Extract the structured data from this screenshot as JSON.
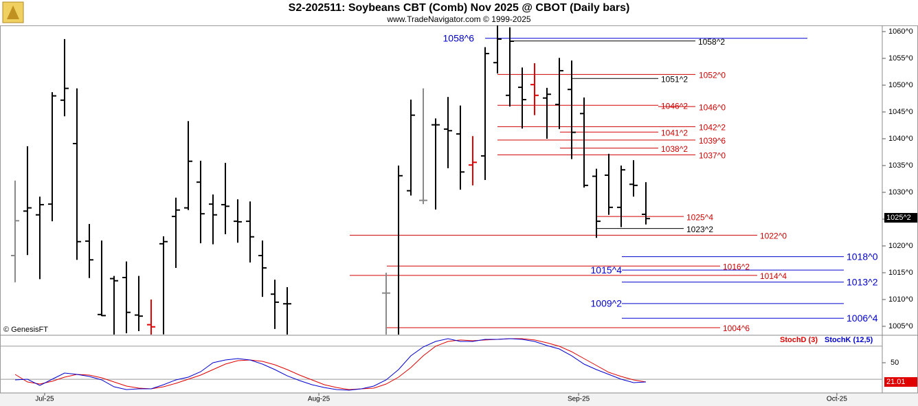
{
  "title": "S2-202511:  Soybeans CBT (Comb) Nov 2025 @ CBOT  (Daily bars)",
  "subtitle": "www.TradeNavigator.com © 1999-2025",
  "watermark": "© GenesisFT",
  "chart_data": [
    {
      "type": "ohlc",
      "xlim": [
        -1.22,
        70.11
      ],
      "ylim": [
        1003.46,
        1061.15
      ],
      "xticks": [
        {
          "value": 2.39,
          "label": "Jul-25"
        },
        {
          "value": 24.56,
          "label": "Aug-25"
        },
        {
          "value": 45.56,
          "label": "Sep-25"
        },
        {
          "value": 66.44,
          "label": "Oct-25"
        }
      ],
      "yticks": [
        {
          "value": 1060,
          "label": "1060^0"
        },
        {
          "value": 1055,
          "label": "1055^0"
        },
        {
          "value": 1050,
          "label": "1050^0"
        },
        {
          "value": 1045,
          "label": "1045^0"
        },
        {
          "value": 1040,
          "label": "1040^0"
        },
        {
          "value": 1035,
          "label": "1035^0"
        },
        {
          "value": 1030,
          "label": "1030^0"
        },
        {
          "value": 1025,
          "label": "1025^0"
        },
        {
          "value": 1020,
          "label": "1020^0"
        },
        {
          "value": 1015,
          "label": "1015^0"
        },
        {
          "value": 1010,
          "label": "1010^0"
        },
        {
          "value": 1005,
          "label": "1005^0"
        }
      ],
      "open": [
        1018.2,
        1026.5,
        1025.8,
        1027.8,
        1047.2,
        1039.1,
        1020.9,
        1007.2,
        1013.9,
        1014.1,
        1007.1,
        1005.3,
        1020.4,
        1025.5,
        1027.1,
        1031.9,
        1027.8,
        1027.7,
        1024.6,
        1024.6,
        1018.2,
        1011.0,
        1009.2,
        null,
        null,
        null,
        null,
        null,
        null,
        null,
        1011.2,
        1003.0,
        1030.3,
        1028.5,
        1042.6,
        1041.8,
        1040.9,
        1035.1,
        1036.8,
        1054.2,
        1048.1,
        1049.6,
        1050.1,
        1047.6,
        1046.4,
        1049.2,
        1044.7,
        1033.0,
        1033.2,
        1027.2,
        1031.5,
        1025.9
      ],
      "high": [
        1032.2,
        1038.6,
        1029.2,
        1048.7,
        1058.6,
        1049.4,
        1024.1,
        1021.0,
        1014.4,
        1017.1,
        1014.4,
        1010.0,
        1021.8,
        1029.0,
        1043.3,
        1035.9,
        1029.6,
        1035.5,
        1028.7,
        1028.3,
        1021.0,
        1013.7,
        1012.3,
        null,
        null,
        null,
        null,
        null,
        null,
        null,
        1015.0,
        1035.0,
        1047.3,
        1049.4,
        1043.8,
        1047.8,
        1046.2,
        1040.5,
        1057.1,
        1061.2,
        1060.8,
        1053.3,
        1054.1,
        1049.5,
        1055.1,
        1054.6,
        1047.7,
        1034.4,
        1037.2,
        1035.0,
        1036.0,
        1031.9
      ],
      "low": [
        1013.2,
        1018.3,
        1013.8,
        1024.6,
        1044.2,
        1017.4,
        1014.0,
        1006.9,
        1002.0,
        1003.7,
        1004.1,
        1003.0,
        1003.5,
        1015.9,
        1026.7,
        1020.5,
        1020.3,
        1022.2,
        1020.6,
        1016.9,
        1010.5,
        1004.5,
        1003.0,
        null,
        null,
        null,
        null,
        null,
        null,
        null,
        1003.0,
        1003.0,
        1029.4,
        1027.8,
        1026.8,
        1034.5,
        1030.5,
        1031.3,
        1032.3,
        1052.2,
        1046.0,
        1041.9,
        1044.4,
        1040.0,
        1041.8,
        1036.2,
        1030.9,
        1021.5,
        1025.8,
        1023.5,
        1029.2,
        1024.0
      ],
      "close": [
        1024.7,
        1027.1,
        1027.7,
        1048.0,
        1049.4,
        1020.8,
        1017.4,
        1007.0,
        1013.5,
        1007.6,
        1006.9,
        1004.9,
        1020.8,
        1026.7,
        1035.8,
        1026.0,
        1025.8,
        1027.4,
        1024.5,
        1021.7,
        1015.9,
        1009.5,
        1009.2,
        null,
        null,
        null,
        null,
        null,
        null,
        null,
        1011.2,
        1033.1,
        1044.4,
        1028.5,
        1042.6,
        1041.5,
        1033.8,
        1035.6,
        1055.9,
        1058.6,
        1058.2,
        1047.3,
        1048.1,
        1048.3,
        1052.7,
        1041.2,
        1031.3,
        1024.6,
        1027.2,
        1034.2,
        1031.3,
        1025.1
      ],
      "colors": [
        "#888888",
        "#000000",
        "#000000",
        "#000000",
        "#000000",
        "#000000",
        "#000000",
        "#000000",
        "#000000",
        "#000000",
        "#000000",
        "#e00000",
        "#000000",
        "#000000",
        "#000000",
        "#000000",
        "#000000",
        "#000000",
        "#000000",
        "#000000",
        "#000000",
        "#000000",
        "#000000",
        "#000000",
        "#000000",
        "#000000",
        "#000000",
        "#000000",
        "#000000",
        "#000000",
        "#888888",
        "#000000",
        "#000000",
        "#888888",
        "#000000",
        "#000000",
        "#000000",
        "#e00000",
        "#000000",
        "#000000",
        "#000000",
        "#000000",
        "#e00000",
        "#000000",
        "#000000",
        "#000000",
        "#000000",
        "#000000",
        "#000000",
        "#000000",
        "#000000",
        "#000000"
      ],
      "levels": [
        {
          "value": 1058.75,
          "label": "1058^6",
          "color": "#0000d0"
        },
        {
          "value": 1058.25,
          "label": "1058^2",
          "color": "#000000"
        },
        {
          "value": 1052,
          "label": "1052^0",
          "color": "#d00000"
        },
        {
          "value": 1051.25,
          "label": "1051^2",
          "color": "#000000"
        },
        {
          "value": 1046.25,
          "label": "1046^2",
          "color": "#d00000"
        },
        {
          "value": 1046,
          "label": "1046^0",
          "color": "#d00000"
        },
        {
          "value": 1042.25,
          "label": "1042^2",
          "color": "#d00000"
        },
        {
          "value": 1041.25,
          "label": "1041^2",
          "color": "#d00000"
        },
        {
          "value": 1039.75,
          "label": "1039^6",
          "color": "#d00000"
        },
        {
          "value": 1038.25,
          "label": "1038^2",
          "color": "#d00000"
        },
        {
          "value": 1037,
          "label": "1037^0",
          "color": "#d00000"
        },
        {
          "value": 1025.5,
          "label": "1025^4",
          "color": "#d00000"
        },
        {
          "value": 1023.25,
          "label": "1023^2",
          "color": "#000000"
        },
        {
          "value": 1022,
          "label": "1022^0",
          "color": "#d00000"
        },
        {
          "value": 1018,
          "label": "1018^0",
          "color": "#0000d0"
        },
        {
          "value": 1016.25,
          "label": "1016^2",
          "color": "#d00000"
        },
        {
          "value": 1015.5,
          "label": "1015^4",
          "color": "#0000d0"
        },
        {
          "value": 1014.5,
          "label": "1014^4",
          "color": "#d00000"
        },
        {
          "value": 1013.25,
          "label": "1013^2",
          "color": "#0000d0"
        },
        {
          "value": 1009.25,
          "label": "1009^2",
          "color": "#0000d0"
        },
        {
          "value": 1006.5,
          "label": "1006^4",
          "color": "#0000d0"
        },
        {
          "value": 1004.75,
          "label": "1004^6",
          "color": "#d00000"
        }
      ],
      "last_label": {
        "value": 1025.25,
        "label": "1025^2"
      }
    },
    {
      "type": "line",
      "xlim": [
        -1.22,
        70.11
      ],
      "ylim": [
        4.5,
        89.3
      ],
      "yticks": [
        50
      ],
      "guides": [
        75,
        25
      ],
      "series": [
        {
          "name": "StochD (3)",
          "color": "#e00000",
          "values": [
            32.4,
            21.0,
            17.9,
            22.1,
            28.3,
            32.4,
            31.4,
            27.2,
            21.0,
            14.8,
            11.7,
            10.7,
            13.8,
            19.0,
            25.2,
            31.4,
            39.7,
            47.9,
            53.1,
            54.1,
            52.1,
            46.9,
            39.7,
            31.4,
            24.1,
            16.9,
            12.7,
            9.6,
            10.7,
            11.7,
            17.9,
            28.3,
            42.8,
            60.4,
            74.8,
            82.1,
            84.2,
            83.1,
            84.2,
            85.2,
            86.2,
            86.2,
            84.2,
            80.0,
            74.8,
            66.6,
            56.2,
            45.9,
            35.5,
            29.3,
            24.1,
            21.0
          ]
        },
        {
          "name": "StochK (12,5)",
          "color": "#0000d0",
          "values": [
            24.1,
            25.2,
            15.8,
            25.2,
            34.5,
            32.4,
            29.3,
            24.1,
            13.8,
            9.6,
            10.7,
            10.7,
            16.9,
            24.1,
            28.3,
            36.5,
            50.0,
            54.1,
            56.2,
            54.1,
            47.9,
            39.7,
            30.3,
            23.1,
            16.9,
            12.7,
            9.6,
            8.6,
            10.7,
            14.8,
            24.1,
            39.7,
            60.4,
            73.8,
            82.1,
            86.2,
            82.1,
            82.1,
            85.2,
            85.2,
            86.2,
            85.2,
            82.1,
            75.9,
            70.7,
            60.4,
            47.9,
            39.7,
            32.4,
            25.2,
            20.0,
            21.01
          ]
        }
      ]
    }
  ]
}
